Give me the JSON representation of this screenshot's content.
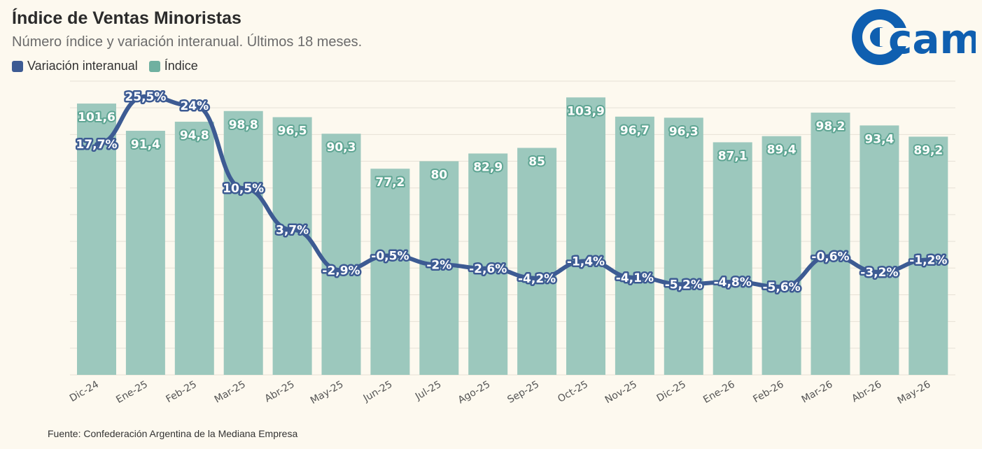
{
  "header": {
    "title": "Índice de Ventas Minoristas",
    "subtitle": "Número índice y variación interanual. Últimos 18 meses."
  },
  "legend": {
    "items": [
      {
        "label": "Variación interanual",
        "color": "#3d5b93"
      },
      {
        "label": "Índice",
        "color": "#6fb0a0"
      }
    ]
  },
  "logo": {
    "text": "came",
    "color": "#0f5fb0"
  },
  "footer": {
    "source": "Fuente: Confederación Argentina de la Mediana Empresa"
  },
  "chart_data": {
    "type": "bar",
    "title": "Índice de Ventas Minoristas",
    "subtitle": "Número índice y variación interanual. Últimos 18 meses.",
    "categories": [
      "Dic-24",
      "Ene-25",
      "Feb-25",
      "Mar-25",
      "Abr-25",
      "May-25",
      "Jun-25",
      "Jul-25",
      "Ago-25",
      "Sep-25",
      "Oct-25",
      "Nov-25",
      "Dic-25",
      "Ene-26",
      "Feb-26",
      "Mar-26",
      "Abr-26",
      "May-26"
    ],
    "series": [
      {
        "name": "Índice",
        "type": "bar",
        "color": "#9cc8bd",
        "values": [
          101.6,
          91.4,
          94.8,
          98.8,
          96.5,
          90.3,
          77.2,
          80,
          82.9,
          85,
          103.9,
          96.7,
          96.3,
          87.1,
          89.4,
          98.2,
          93.4,
          89.2
        ],
        "labels": [
          "101,6",
          "91,4",
          "94,8",
          "98,8",
          "96,5",
          "90,3",
          "77,2",
          "80",
          "82,9",
          "85",
          "103,9",
          "96,7",
          "96,3",
          "87,1",
          "89,4",
          "98,2",
          "93,4",
          "89,2"
        ]
      },
      {
        "name": "Variación interanual",
        "type": "line",
        "color": "#3d5b93",
        "values": [
          17.7,
          25.5,
          24,
          10.5,
          3.7,
          -2.9,
          -0.5,
          -2,
          -2.6,
          -4.2,
          -1.4,
          -4.1,
          -5.2,
          -4.8,
          -5.6,
          -0.6,
          -3.2,
          -1.2
        ],
        "labels": [
          "17,7%",
          "25,5%",
          "24%",
          "10,5%",
          "3,7%",
          "-2,9%",
          "-0,5%",
          "-2%",
          "-2,6%",
          "-4,2%",
          "-1,4%",
          "-4,1%",
          "-5,2%",
          "-4,8%",
          "-5,6%",
          "-0,6%",
          "-3,2%",
          "-1,2%"
        ]
      }
    ],
    "bar_axis_range": [
      0,
      110
    ],
    "line_axis_range": [
      -20,
      28
    ],
    "grid": true,
    "legend_position": "top-left"
  }
}
